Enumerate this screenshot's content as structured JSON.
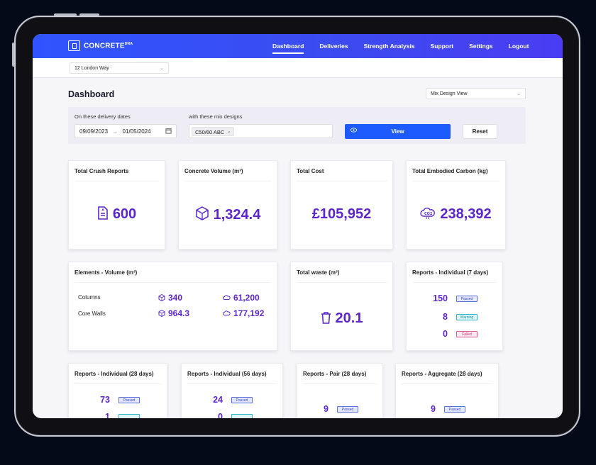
{
  "nav": {
    "logo_text": "CONCRETE",
    "logo_sup": "DNA",
    "items": [
      {
        "label": "Dashboard",
        "active": true
      },
      {
        "label": "Deliveries"
      },
      {
        "label": "Strength Analysis"
      },
      {
        "label": "Support"
      },
      {
        "label": "Settings"
      },
      {
        "label": "Logout"
      }
    ]
  },
  "site": {
    "selected": "12 London Way"
  },
  "page": {
    "title": "Dashboard",
    "view_select": "Mix Design View"
  },
  "filter": {
    "date_label": "On these delivery dates",
    "date_from": "09/09/2023",
    "date_arrow": "→",
    "date_to": "01/05/2024",
    "mix_label": "with these mix designs",
    "mix_tag": "C50/60 ABC",
    "view_label": "View",
    "reset_label": "Reset"
  },
  "stats": [
    {
      "title": "Total Crush Reports",
      "value": "600",
      "icon": "document-icon"
    },
    {
      "title": "Concrete Volume (m³)",
      "value": "1,324.4",
      "icon": "cube-icon"
    },
    {
      "title": "Total Cost",
      "value": "£105,952"
    },
    {
      "title": "Total Embodied Carbon (kg)",
      "value": "238,392",
      "icon": "co2-cloud-icon"
    }
  ],
  "elements": {
    "title": "Elements - Volume (m³)",
    "rows": [
      {
        "name": "Columns",
        "volume": "340",
        "carbon": "61,200"
      },
      {
        "name": "Core Walls",
        "volume": "964.3",
        "carbon": "177,192"
      }
    ]
  },
  "waste": {
    "title": "Total waste (m³)",
    "value": "20.1",
    "icon": "bin-icon"
  },
  "reports7": {
    "title": "Reports - Individual (7 days)",
    "rows": [
      {
        "count": "150",
        "status": "Passed"
      },
      {
        "count": "8",
        "status": "Warning"
      },
      {
        "count": "0",
        "status": "Failed"
      }
    ]
  },
  "reports_bottom": [
    {
      "title": "Reports - Individual (28 days)",
      "rows": [
        {
          "count": "73",
          "status": "Passed"
        },
        {
          "count": "1",
          "status": ""
        }
      ]
    },
    {
      "title": "Reports - Individual (56 days)",
      "rows": [
        {
          "count": "24",
          "status": "Passed"
        },
        {
          "count": "0",
          "status": ""
        }
      ]
    },
    {
      "title": "Reports - Pair (28 days)",
      "rows": [
        {
          "count": "9",
          "status": "Passed"
        }
      ]
    },
    {
      "title": "Reports - Aggregate (28 days)",
      "rows": [
        {
          "count": "9",
          "status": "Passed"
        }
      ]
    }
  ],
  "colors": {
    "accent": "#5b26c9",
    "nav": "#2f54ff",
    "button": "#1e5bff"
  }
}
